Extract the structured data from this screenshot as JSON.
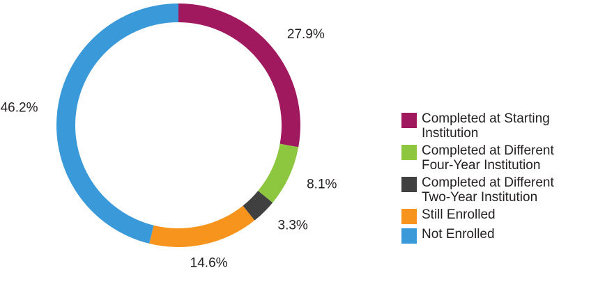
{
  "chart_data": {
    "type": "donut",
    "categories": [
      "Completed at Starting Institution",
      "Completed at Different Four-Year Institution",
      "Completed at Different Two-Year Institution",
      "Still Enrolled",
      "Not Enrolled"
    ],
    "values": [
      27.9,
      8.1,
      3.3,
      14.6,
      46.2
    ],
    "value_labels": [
      "27.9%",
      "8.1%",
      "3.3%",
      "14.6%",
      "46.2%"
    ],
    "colors": [
      "#a0195f",
      "#8dc63f",
      "#404041",
      "#f7941d",
      "#3a9ad9"
    ],
    "legend": "right"
  }
}
